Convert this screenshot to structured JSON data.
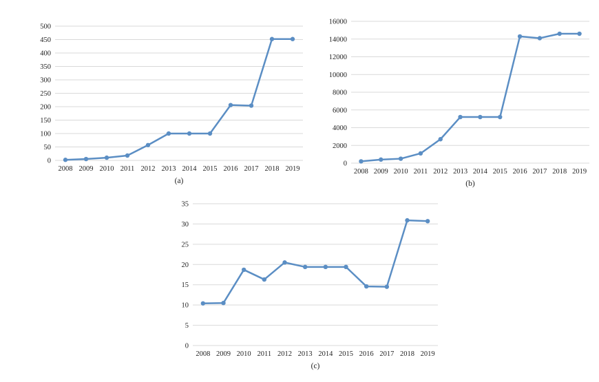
{
  "chart_data": [
    {
      "type": "line",
      "caption": "(a)",
      "x": [
        "2008",
        "2009",
        "2010",
        "2011",
        "2012",
        "2013",
        "2014",
        "2015",
        "2016",
        "2017",
        "2018",
        "2019"
      ],
      "series": [
        {
          "values": [
            2,
            5,
            10,
            18,
            57,
            100,
            100,
            100,
            206,
            204,
            452,
            452
          ]
        }
      ],
      "ylim": [
        0,
        500
      ],
      "yticks": [
        0,
        50,
        100,
        150,
        200,
        250,
        300,
        350,
        400,
        450,
        500
      ],
      "grid": true,
      "color": "#5b8ec4"
    },
    {
      "type": "line",
      "caption": "(b)",
      "x": [
        "2008",
        "2009",
        "2010",
        "2011",
        "2012",
        "2013",
        "2014",
        "2015",
        "2016",
        "2017",
        "2018",
        "2019"
      ],
      "series": [
        {
          "values": [
            200,
            400,
            500,
            1100,
            2700,
            5200,
            5200,
            5200,
            14300,
            14100,
            14600,
            14600
          ]
        }
      ],
      "ylim": [
        0,
        16000
      ],
      "yticks": [
        0,
        2000,
        4000,
        6000,
        8000,
        10000,
        12000,
        14000,
        16000
      ],
      "grid": true,
      "color": "#5b8ec4"
    },
    {
      "type": "line",
      "caption": "(c)",
      "x": [
        "2008",
        "2009",
        "2010",
        "2011",
        "2012",
        "2013",
        "2014",
        "2015",
        "2016",
        "2017",
        "2018",
        "2019"
      ],
      "series": [
        {
          "values": [
            10.4,
            10.5,
            18.7,
            16.3,
            20.5,
            19.4,
            19.4,
            19.4,
            14.6,
            14.5,
            30.9,
            30.7
          ]
        }
      ],
      "ylim": [
        0,
        35
      ],
      "yticks": [
        0,
        5,
        10,
        15,
        20,
        25,
        30,
        35
      ],
      "grid": true,
      "color": "#5b8ec4"
    }
  ]
}
